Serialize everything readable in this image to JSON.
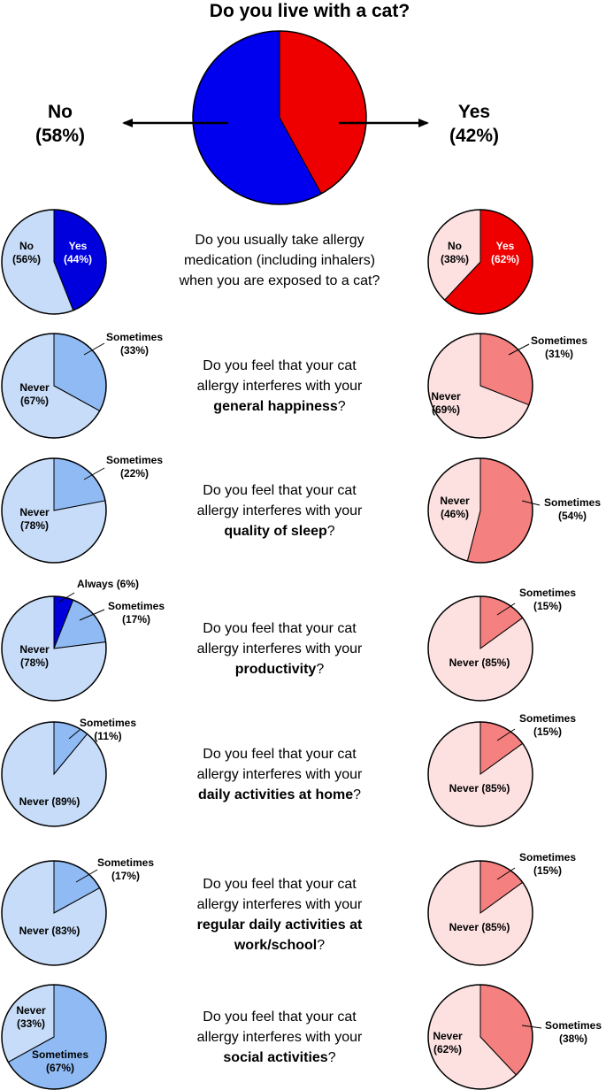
{
  "chart_data": [
    {
      "type": "pie",
      "title": "Do you live with a cat?",
      "slices": [
        {
          "label": "No",
          "value": 58,
          "pct_text": "(58%)",
          "color": "#0000ee"
        },
        {
          "label": "Yes",
          "value": 42,
          "pct_text": "(42%)",
          "color": "#ee0000"
        }
      ]
    },
    {
      "type": "pie",
      "question": [
        "Do you usually take allergy",
        "medication (including inhalers)",
        "when you are exposed to a cat?"
      ],
      "question_bold": "",
      "question_tail": "",
      "no": [
        {
          "label": "No",
          "pct_text": "(56%)",
          "value": 56,
          "color": "#c6dcf8"
        },
        {
          "label": "Yes",
          "pct_text": "(44%)",
          "value": 44,
          "color": "#0000dd"
        }
      ],
      "yes": [
        {
          "label": "No",
          "pct_text": "(38%)",
          "value": 38,
          "color": "#fde0e0"
        },
        {
          "label": "Yes",
          "pct_text": "(62%)",
          "value": 62,
          "color": "#ee0000"
        }
      ]
    },
    {
      "type": "pie",
      "question": [
        "Do you feel that your cat",
        "allergy interferes with your"
      ],
      "question_bold": "general happiness",
      "question_tail": "?",
      "no": [
        {
          "label": "Sometimes",
          "pct_text": "(33%)",
          "value": 33,
          "color": "#8fbaf4"
        },
        {
          "label": "Never",
          "pct_text": "(67%)",
          "value": 67,
          "color": "#c6dcf8"
        }
      ],
      "yes": [
        {
          "label": "Sometimes",
          "pct_text": "(31%)",
          "value": 31,
          "color": "#f58080"
        },
        {
          "label": "Never",
          "pct_text": "(69%)",
          "value": 69,
          "color": "#fde0e0"
        }
      ]
    },
    {
      "type": "pie",
      "question": [
        "Do you feel that your cat",
        "allergy interferes with your"
      ],
      "question_bold": "quality of sleep",
      "question_tail": "?",
      "no": [
        {
          "label": "Sometimes",
          "pct_text": "(22%)",
          "value": 22,
          "color": "#8fbaf4"
        },
        {
          "label": "Never",
          "pct_text": "(78%)",
          "value": 78,
          "color": "#c6dcf8"
        }
      ],
      "yes": [
        {
          "label": "Sometimes",
          "pct_text": "(54%)",
          "value": 54,
          "color": "#f58080"
        },
        {
          "label": "Never",
          "pct_text": "(46%)",
          "value": 46,
          "color": "#fde0e0"
        }
      ]
    },
    {
      "type": "pie",
      "question": [
        "Do you feel that your cat",
        "allergy interferes with your"
      ],
      "question_bold": "productivity",
      "question_tail": "?",
      "no": [
        {
          "label": "Always",
          "pct_text": "(6%)",
          "value": 6,
          "color": "#0000dd"
        },
        {
          "label": "Sometimes",
          "pct_text": "(17%)",
          "value": 17,
          "color": "#8fbaf4"
        },
        {
          "label": "Never",
          "pct_text": "(78%)",
          "value": 78,
          "color": "#c6dcf8"
        }
      ],
      "yes": [
        {
          "label": "Sometimes",
          "pct_text": "(15%)",
          "value": 15,
          "color": "#f58080"
        },
        {
          "label": "Never",
          "pct_text": "(85%)",
          "value": 85,
          "color": "#fde0e0"
        }
      ]
    },
    {
      "type": "pie",
      "question": [
        "Do you feel that your cat",
        "allergy interferes with your"
      ],
      "question_bold": "daily activities at home",
      "question_tail": "?",
      "no": [
        {
          "label": "Sometimes",
          "pct_text": "(11%)",
          "value": 11,
          "color": "#8fbaf4"
        },
        {
          "label": "Never",
          "pct_text": "(89%)",
          "value": 89,
          "color": "#c6dcf8"
        }
      ],
      "yes": [
        {
          "label": "Sometimes",
          "pct_text": "(15%)",
          "value": 15,
          "color": "#f58080"
        },
        {
          "label": "Never",
          "pct_text": "(85%)",
          "value": 85,
          "color": "#fde0e0"
        }
      ]
    },
    {
      "type": "pie",
      "question": [
        "Do you feel that your cat",
        "allergy interferes with your"
      ],
      "question_bold": [
        "regular daily activities at",
        "work/school"
      ],
      "question_tail": "?",
      "no": [
        {
          "label": "Sometimes",
          "pct_text": "(17%)",
          "value": 17,
          "color": "#8fbaf4"
        },
        {
          "label": "Never",
          "pct_text": "(83%)",
          "value": 83,
          "color": "#c6dcf8"
        }
      ],
      "yes": [
        {
          "label": "Sometimes",
          "pct_text": "(15%)",
          "value": 15,
          "color": "#f58080"
        },
        {
          "label": "Never",
          "pct_text": "(85%)",
          "value": 85,
          "color": "#fde0e0"
        }
      ]
    },
    {
      "type": "pie",
      "question": [
        "Do you feel that your cat",
        "allergy interferes with your"
      ],
      "question_bold": "social activities",
      "question_tail": "?",
      "no": [
        {
          "label": "Sometimes",
          "pct_text": "(67%)",
          "value": 67,
          "color": "#8fbaf4"
        },
        {
          "label": "Never",
          "pct_text": "(33%)",
          "value": 33,
          "color": "#c6dcf8"
        }
      ],
      "yes": [
        {
          "label": "Sometimes",
          "pct_text": "(38%)",
          "value": 38,
          "color": "#f58080"
        },
        {
          "label": "Never",
          "pct_text": "(62%)",
          "value": 62,
          "color": "#fde0e0"
        }
      ]
    }
  ]
}
